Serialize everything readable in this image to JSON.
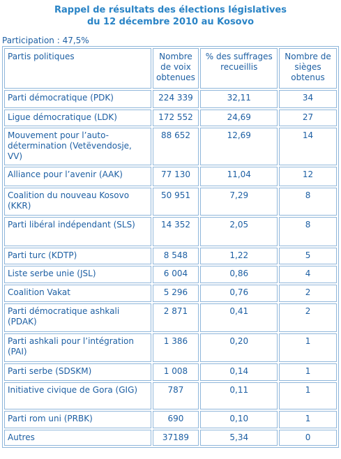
{
  "header": {
    "title": [
      "Rappel de résultats des élections législatives",
      "du 12 décembre 2010 au Kosovo"
    ],
    "participation": "Participation  : 47,5%"
  },
  "table": {
    "columns": [
      "Partis politiques",
      "Nombre de voix obtenues",
      "% des suffrages recueillis",
      "Nombre de sièges obtenus"
    ],
    "rows": [
      [
        "Parti démocratique  (PDK)",
        "224 339",
        "32,11",
        "34"
      ],
      [
        "Ligue démocratique  (LDK)",
        "172 552",
        "24,69",
        "27"
      ],
      [
        "Mouvement pour l’auto-détermination (Vetëvendosje, VV)",
        "88 652",
        "12,69",
        "14"
      ],
      [
        "Alliance pour l’avenir (AAK)",
        "77 130",
        "11,04",
        "12"
      ],
      [
        "Coalition  du nouveau Kosovo (KKR)",
        "50 951",
        "7,29",
        "8"
      ],
      [
        "Parti libéral indépendant (SLS)",
        "14 352",
        "2,05",
        "8"
      ],
      [
        "Parti turc (KDTP)",
        "8 548",
        "1,22",
        "5"
      ],
      [
        "Liste serbe unie  (JSL)",
        "6 004",
        "0,86",
        "4"
      ],
      [
        "Coalition  Vakat",
        "5 296",
        "0,76",
        "2"
      ],
      [
        "Parti démocratique  ashkali (PDAK)",
        "2 871",
        "0,41",
        "2"
      ],
      [
        "Parti ashkali pour l’intégration  (PAI)",
        "1 386",
        "0,20",
        "1"
      ],
      [
        "Parti serbe  (SDSKM)",
        "1 008",
        "0,14",
        "1"
      ],
      [
        "Initiative  civique de Gora (GIG)",
        "787",
        "0,11",
        "1"
      ],
      [
        "Parti rom uni (PRBK)",
        "690",
        "0,10",
        "1"
      ],
      [
        "Autres",
        "37189",
        "5,34",
        "0"
      ]
    ]
  }
}
